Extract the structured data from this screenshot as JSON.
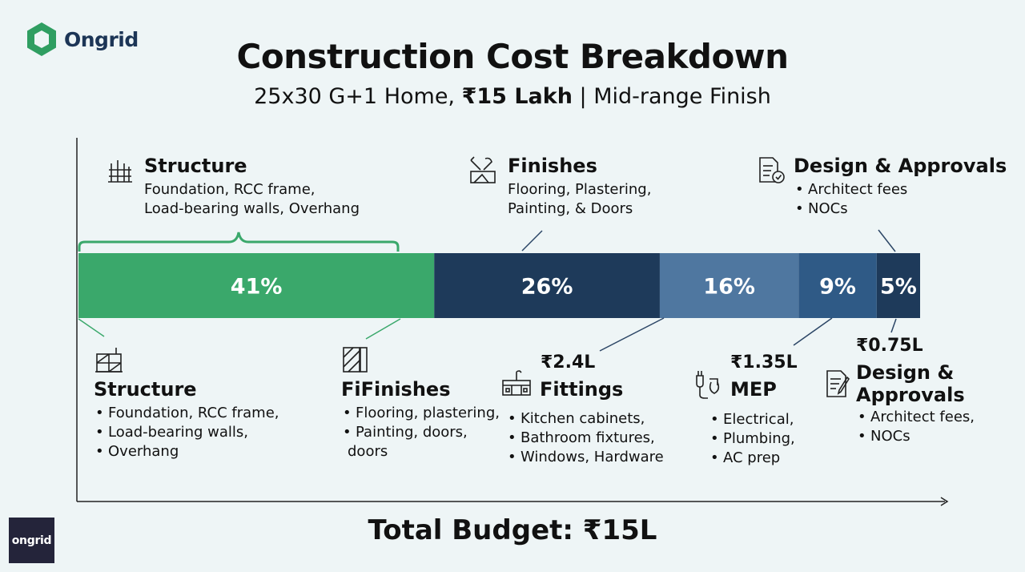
{
  "brand": {
    "logo_text": "Ongrid",
    "badge_text": "ongrid"
  },
  "header": {
    "title": "Construction Cost Breakdown",
    "subtitle_pre": "25x30 G+1 Home, ",
    "subtitle_bold": "₹15 Lakh",
    "subtitle_post": " | Mid-range Finish"
  },
  "top": {
    "structure": {
      "title": "Structure",
      "lines": [
        "Foundation, RCC frame,",
        "Load-bearing walls, Overhang"
      ]
    },
    "finishes": {
      "title": "Finishes",
      "lines": [
        "Flooring, Plastering,",
        "Painting, & Doors"
      ]
    },
    "design": {
      "title": "Design & Approvals",
      "bullets": [
        "Architect fees",
        "NOCs"
      ]
    }
  },
  "bottom": {
    "structure": {
      "title": "Structure",
      "bullets": [
        "Foundation, RCC frame,",
        "Load-bearing walls,",
        "Overhang"
      ]
    },
    "finishes": {
      "title": "FiFinishes",
      "bullets": [
        "Flooring, plastering,",
        "Painting, doors,"
      ],
      "continuation": "doors"
    },
    "fittings": {
      "amount": "₹2.4L",
      "title": "Fittings",
      "bullets": [
        "Kitchen cabinets,",
        "Bathroom fixtures,",
        "Windows, Hardware"
      ]
    },
    "mep": {
      "amount": "₹1.35L",
      "title": "MEP",
      "bullets": [
        "Electrical,",
        "Plumbing,",
        "AC prep"
      ]
    },
    "design": {
      "amount": "₹0.75L",
      "title_lines": [
        "Design &",
        "Approvals"
      ],
      "bullets": [
        "Architect fees,",
        "NOCs"
      ]
    }
  },
  "footer": {
    "total": "Total Budget: ₹15L"
  },
  "colors": {
    "structure": "#3aa86b",
    "finishes": "#1e3a5a",
    "fittings": "#4f77a0",
    "mep": "#2f5a86",
    "design": "#1e3a5a",
    "brace": "#3aa86b"
  },
  "chart_data": {
    "type": "bar",
    "orientation": "horizontal-stacked",
    "title": "Construction Cost Breakdown",
    "subtitle": "25x30 G+1 Home, ₹15 Lakh | Mid-range Finish",
    "series": [
      {
        "name": "Structure",
        "value": 41,
        "label": "41%",
        "color": "#3aa86b"
      },
      {
        "name": "Finishes",
        "value": 26,
        "label": "26%",
        "color": "#1e3a5a"
      },
      {
        "name": "Fittings",
        "value": 16,
        "label": "16%",
        "color": "#4f77a0"
      },
      {
        "name": "MEP",
        "value": 9,
        "label": "9%",
        "color": "#2f5a86"
      },
      {
        "name": "Design & Approvals",
        "value": 5,
        "label": "5%",
        "color": "#1e3a5a"
      }
    ],
    "annotations": [
      "₹2.4L",
      "₹1.35L",
      "₹0.75L",
      "Total Budget: ₹15L"
    ],
    "grid": false,
    "legend": "none"
  }
}
